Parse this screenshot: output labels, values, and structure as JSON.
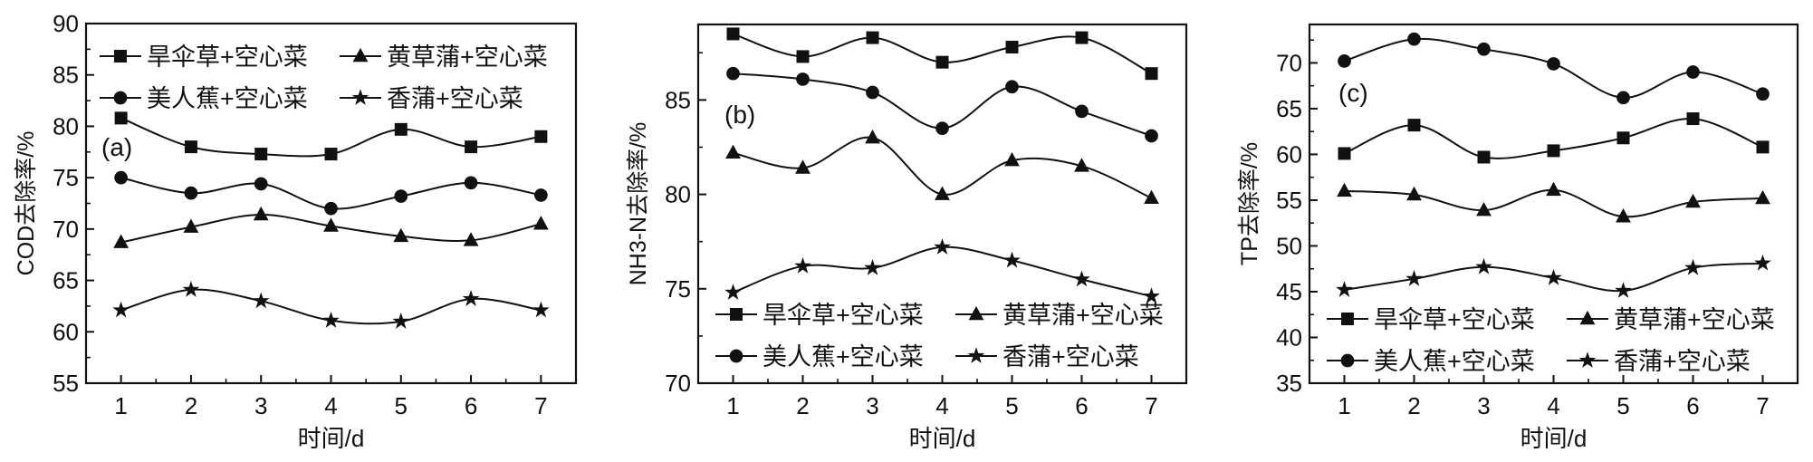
{
  "chart_data": [
    {
      "type": "line",
      "panel_label": "(a)",
      "xlabel": "时间/d",
      "ylabel": "COD去除率/%",
      "x": [
        1,
        2,
        3,
        4,
        5,
        6,
        7
      ],
      "xlim": [
        0.5,
        7.5
      ],
      "ylim": [
        55,
        90
      ],
      "yticks": [
        55,
        60,
        65,
        70,
        75,
        80,
        85,
        90
      ],
      "legend_position": "top",
      "series": [
        {
          "name": "旱伞草+空心菜",
          "marker": "square",
          "values": [
            80.8,
            78.0,
            77.3,
            77.3,
            79.7,
            78.0,
            79.0
          ]
        },
        {
          "name": "黄草蒲+空心菜",
          "marker": "triangle",
          "values": [
            68.7,
            70.2,
            71.4,
            70.3,
            69.3,
            68.9,
            70.5
          ]
        },
        {
          "name": "美人蕉+空心菜",
          "marker": "circle",
          "values": [
            75.0,
            73.5,
            74.4,
            72.0,
            73.2,
            74.5,
            73.3
          ]
        },
        {
          "name": "香蒲+空心菜",
          "marker": "star",
          "values": [
            62.1,
            64.1,
            63.0,
            61.1,
            61.0,
            63.2,
            62.1
          ]
        }
      ]
    },
    {
      "type": "line",
      "panel_label": "(b)",
      "xlabel": "时间/d",
      "ylabel": "NH3-N去除率/%",
      "x": [
        1,
        2,
        3,
        4,
        5,
        6,
        7
      ],
      "xlim": [
        0.5,
        7.5
      ],
      "ylim": [
        70,
        89
      ],
      "yticks": [
        70,
        75,
        80,
        85
      ],
      "legend_position": "bottom",
      "series": [
        {
          "name": "旱伞草+空心菜",
          "marker": "square",
          "values": [
            88.5,
            87.3,
            88.3,
            87.0,
            87.8,
            88.3,
            86.4
          ]
        },
        {
          "name": "黄草蒲+空心菜",
          "marker": "triangle",
          "values": [
            82.2,
            81.4,
            83.0,
            80.0,
            81.8,
            81.5,
            79.8
          ]
        },
        {
          "name": "美人蕉+空心菜",
          "marker": "circle",
          "values": [
            86.4,
            86.1,
            85.4,
            83.5,
            85.7,
            84.4,
            83.1
          ]
        },
        {
          "name": "香蒲+空心菜",
          "marker": "star",
          "values": [
            74.8,
            76.2,
            76.1,
            77.2,
            76.5,
            75.5,
            74.6
          ]
        }
      ]
    },
    {
      "type": "line",
      "panel_label": "(c)",
      "xlabel": "时间/d",
      "ylabel": "TP去除率/%",
      "x": [
        1,
        2,
        3,
        4,
        5,
        6,
        7
      ],
      "xlim": [
        0.5,
        7.5
      ],
      "ylim": [
        35,
        74.2
      ],
      "yticks": [
        35,
        40,
        45,
        50,
        55,
        60,
        65,
        70
      ],
      "legend_position": "bottom",
      "series": [
        {
          "name": "旱伞草+空心菜",
          "marker": "square",
          "values": [
            60.1,
            63.2,
            59.7,
            60.4,
            61.8,
            63.9,
            60.8
          ]
        },
        {
          "name": "黄草蒲+空心菜",
          "marker": "triangle",
          "values": [
            56.0,
            55.6,
            53.9,
            56.1,
            53.2,
            54.8,
            55.2
          ]
        },
        {
          "name": "美人蕉+空心菜",
          "marker": "circle",
          "values": [
            70.2,
            72.6,
            71.5,
            69.9,
            66.2,
            69.0,
            66.6
          ]
        },
        {
          "name": "香蒲+空心菜",
          "marker": "star",
          "values": [
            45.2,
            46.4,
            47.7,
            46.5,
            45.1,
            47.6,
            48.1
          ]
        }
      ]
    }
  ],
  "colors": {
    "ink": "#111111",
    "background": "#ffffff"
  }
}
